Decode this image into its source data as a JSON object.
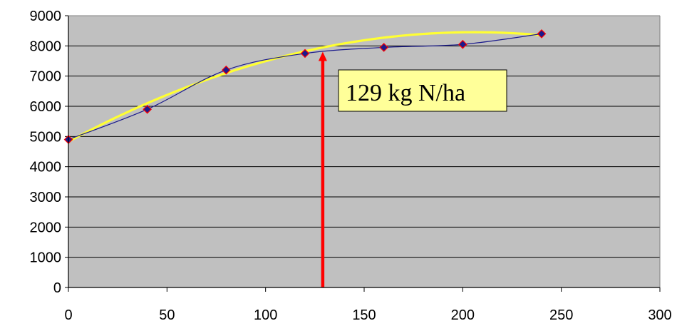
{
  "chart_data": {
    "type": "scatter",
    "x": [
      0,
      40,
      80,
      120,
      160,
      200,
      240
    ],
    "series": [
      {
        "values": [
          4900,
          5900,
          7200,
          7750,
          7950,
          8050,
          8400
        ],
        "marker_color": "#1a1a8c",
        "marker_edge": "#ff0000",
        "line_color": "#1a1a8c"
      }
    ],
    "trendline": {
      "type": "quadratic",
      "color": "#ffff33",
      "coefficients": [
        4830,
        35.2,
        -0.0855
      ],
      "x_range": [
        0,
        240
      ]
    },
    "xlim": [
      0,
      300
    ],
    "ylim": [
      0,
      9000
    ],
    "x_ticks": [
      "0",
      "50",
      "100",
      "150",
      "200",
      "250",
      "300"
    ],
    "y_ticks": [
      "0",
      "1000",
      "2000",
      "3000",
      "4000",
      "5000",
      "6000",
      "7000",
      "8000",
      "9000"
    ],
    "grid": "horizontal",
    "plot_background": "#c0c0c0",
    "annotation": {
      "text": "129 kg N/ha",
      "x": 129,
      "arrow_color": "#ff0000",
      "box_color": "#ffff99"
    }
  }
}
